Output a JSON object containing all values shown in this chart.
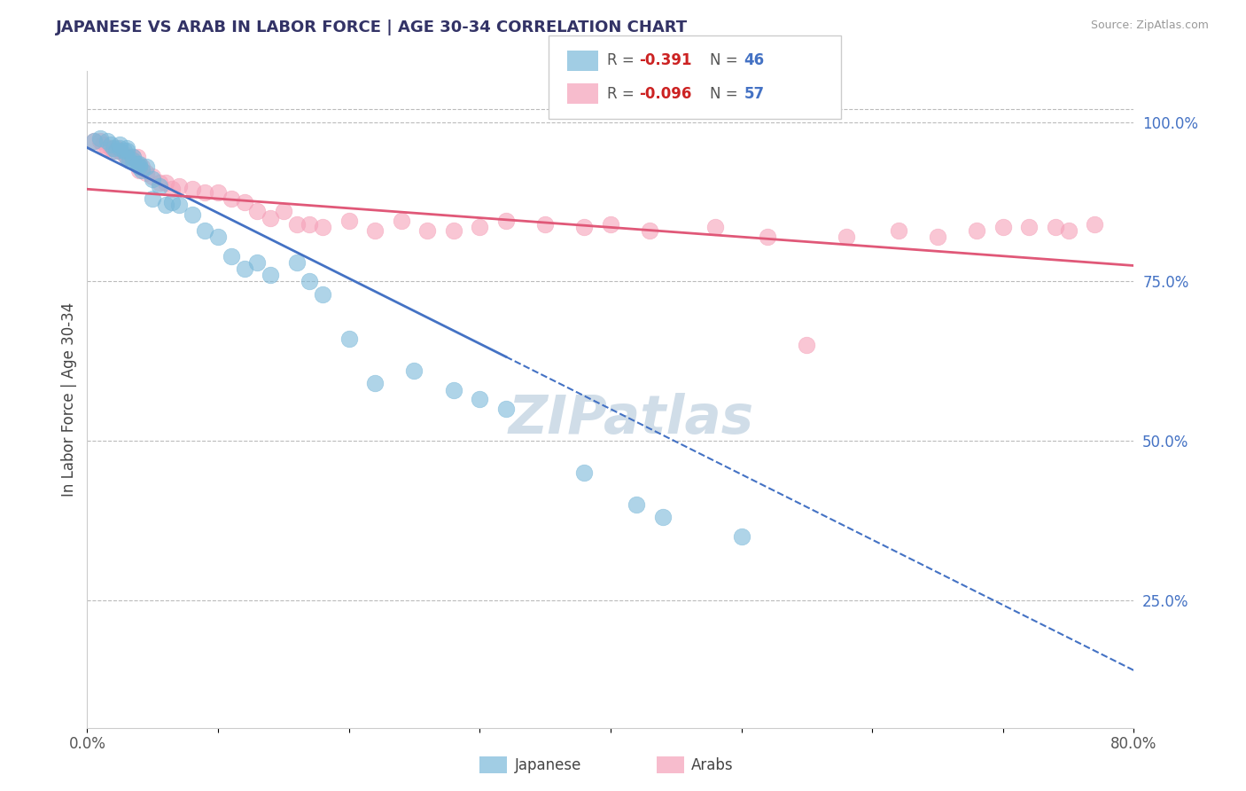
{
  "title": "JAPANESE VS ARAB IN LABOR FORCE | AGE 30-34 CORRELATION CHART",
  "source_text": "Source: ZipAtlas.com",
  "ylabel": "In Labor Force | Age 30-34",
  "xlim": [
    0.0,
    0.8
  ],
  "ylim": [
    0.05,
    1.08
  ],
  "xticks": [
    0.0,
    0.1,
    0.2,
    0.3,
    0.4,
    0.5,
    0.6,
    0.7,
    0.8
  ],
  "xticklabels": [
    "0.0%",
    "",
    "",
    "",
    "",
    "",
    "",
    "",
    "80.0%"
  ],
  "ytick_positions": [
    0.25,
    0.5,
    0.75,
    1.0
  ],
  "ytick_labels": [
    "25.0%",
    "50.0%",
    "75.0%",
    "100.0%"
  ],
  "japanese_color": "#7ab8d9",
  "arab_color": "#f5a0b8",
  "watermark_color": "#d0dde8",
  "japanese_line_color": "#4472c4",
  "arab_line_color": "#e05878",
  "japanese_R": -0.391,
  "japanese_N": 46,
  "arab_R": -0.096,
  "arab_N": 57,
  "j_line_x0": 0.0,
  "j_line_y0": 0.96,
  "j_line_x1": 0.8,
  "j_line_y1": 0.14,
  "j_line_solid_end": 0.32,
  "a_line_x0": 0.0,
  "a_line_y0": 0.895,
  "a_line_x1": 0.8,
  "a_line_y1": 0.775,
  "japanese_scatter_x": [
    0.005,
    0.01,
    0.015,
    0.018,
    0.02,
    0.022,
    0.025,
    0.025,
    0.028,
    0.03,
    0.03,
    0.03,
    0.032,
    0.035,
    0.035,
    0.038,
    0.04,
    0.04,
    0.042,
    0.045,
    0.05,
    0.05,
    0.055,
    0.06,
    0.065,
    0.07,
    0.08,
    0.09,
    0.1,
    0.11,
    0.12,
    0.13,
    0.14,
    0.16,
    0.17,
    0.18,
    0.2,
    0.22,
    0.25,
    0.28,
    0.3,
    0.32,
    0.38,
    0.42,
    0.44,
    0.5
  ],
  "japanese_scatter_y": [
    0.97,
    0.975,
    0.97,
    0.965,
    0.96,
    0.955,
    0.96,
    0.965,
    0.955,
    0.945,
    0.955,
    0.96,
    0.94,
    0.945,
    0.94,
    0.935,
    0.935,
    0.93,
    0.925,
    0.93,
    0.91,
    0.88,
    0.9,
    0.87,
    0.875,
    0.87,
    0.855,
    0.83,
    0.82,
    0.79,
    0.77,
    0.78,
    0.76,
    0.78,
    0.75,
    0.73,
    0.66,
    0.59,
    0.61,
    0.58,
    0.565,
    0.55,
    0.45,
    0.4,
    0.38,
    0.35
  ],
  "arab_scatter_x": [
    0.005,
    0.01,
    0.012,
    0.015,
    0.018,
    0.02,
    0.022,
    0.025,
    0.025,
    0.028,
    0.03,
    0.032,
    0.035,
    0.038,
    0.04,
    0.04,
    0.042,
    0.045,
    0.05,
    0.055,
    0.06,
    0.065,
    0.07,
    0.08,
    0.09,
    0.1,
    0.11,
    0.12,
    0.13,
    0.14,
    0.15,
    0.16,
    0.17,
    0.18,
    0.2,
    0.22,
    0.24,
    0.26,
    0.28,
    0.3,
    0.32,
    0.35,
    0.38,
    0.4,
    0.43,
    0.48,
    0.52,
    0.55,
    0.58,
    0.62,
    0.65,
    0.68,
    0.7,
    0.72,
    0.74,
    0.75,
    0.77
  ],
  "arab_scatter_y": [
    0.97,
    0.97,
    0.965,
    0.96,
    0.96,
    0.955,
    0.96,
    0.955,
    0.955,
    0.95,
    0.945,
    0.945,
    0.945,
    0.945,
    0.93,
    0.925,
    0.93,
    0.92,
    0.915,
    0.905,
    0.905,
    0.895,
    0.9,
    0.895,
    0.89,
    0.89,
    0.88,
    0.875,
    0.86,
    0.85,
    0.86,
    0.84,
    0.84,
    0.835,
    0.845,
    0.83,
    0.845,
    0.83,
    0.83,
    0.835,
    0.845,
    0.84,
    0.835,
    0.84,
    0.83,
    0.835,
    0.82,
    0.65,
    0.82,
    0.83,
    0.82,
    0.83,
    0.835,
    0.835,
    0.835,
    0.83,
    0.84
  ]
}
